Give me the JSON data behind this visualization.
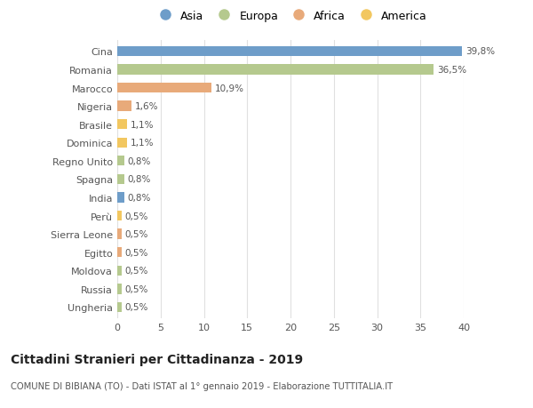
{
  "categories": [
    "Cina",
    "Romania",
    "Marocco",
    "Nigeria",
    "Brasile",
    "Dominica",
    "Regno Unito",
    "Spagna",
    "India",
    "Perù",
    "Sierra Leone",
    "Egitto",
    "Moldova",
    "Russia",
    "Ungheria"
  ],
  "values": [
    39.8,
    36.5,
    10.9,
    1.6,
    1.1,
    1.1,
    0.8,
    0.8,
    0.8,
    0.5,
    0.5,
    0.5,
    0.5,
    0.5,
    0.5
  ],
  "labels": [
    "39,8%",
    "36,5%",
    "10,9%",
    "1,6%",
    "1,1%",
    "1,1%",
    "0,8%",
    "0,8%",
    "0,8%",
    "0,5%",
    "0,5%",
    "0,5%",
    "0,5%",
    "0,5%",
    "0,5%"
  ],
  "colors": [
    "#6e9dc9",
    "#b5c98e",
    "#e8aa7a",
    "#e8aa7a",
    "#f2c760",
    "#f2c760",
    "#b5c98e",
    "#b5c98e",
    "#6e9dc9",
    "#f2c760",
    "#e8aa7a",
    "#e8aa7a",
    "#b5c98e",
    "#b5c98e",
    "#b5c98e"
  ],
  "legend_labels": [
    "Asia",
    "Europa",
    "Africa",
    "America"
  ],
  "legend_colors": [
    "#6e9dc9",
    "#b5c98e",
    "#e8aa7a",
    "#f2c760"
  ],
  "title": "Cittadini Stranieri per Cittadinanza - 2019",
  "subtitle": "COMUNE DI BIBIANA (TO) - Dati ISTAT al 1° gennaio 2019 - Elaborazione TUTTITALIA.IT",
  "xlim": [
    0,
    40
  ],
  "xticks": [
    0,
    5,
    10,
    15,
    20,
    25,
    30,
    35,
    40
  ],
  "bg_color": "#ffffff",
  "grid_color": "#e0e0e0"
}
